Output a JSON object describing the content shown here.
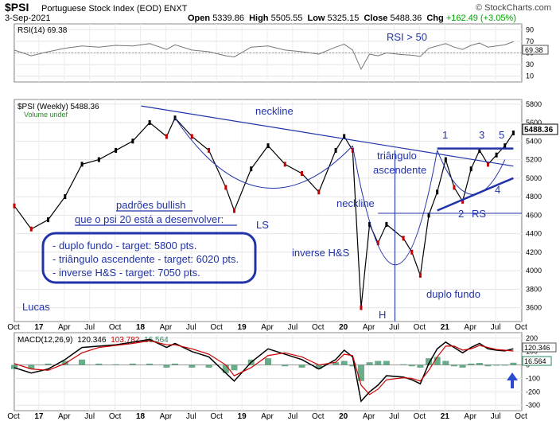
{
  "header": {
    "symbol": "$PSI",
    "name": "Portuguese Stock Index (EOD)  ENXT",
    "date": "3-Sep-2021",
    "site": "© StockCharts.com",
    "open_label": "Open",
    "open": "5339.86",
    "high_label": "High",
    "high": "5505.55",
    "low_label": "Low",
    "low": "5325.15",
    "close_label": "Close",
    "close": "5488.36",
    "chg_label": "Chg",
    "chg": "+162.49 (+3.05%)",
    "chg_color": "#00a000"
  },
  "rsi_panel": {
    "label": "RSI(14) 69.38",
    "value_tag": "69.38",
    "ticks": [
      10,
      30,
      50,
      70,
      90
    ],
    "annotation": "RSI > 50"
  },
  "price_panel": {
    "label": "$PSI (Weekly) 5488.36",
    "volume_label": "Volume undef",
    "last_tag": "5488.36",
    "y_ticks": [
      3600,
      3800,
      4000,
      4200,
      4400,
      4600,
      4800,
      5000,
      5200,
      5400,
      5600,
      5800
    ],
    "annotations": {
      "neckline_top": "neckline",
      "neckline_mid": "neckline",
      "triangle_1": "triângulo",
      "triangle_2": "ascendente",
      "ls": "LS",
      "h": "H",
      "rs": "RS",
      "inverse_hs": "inverse H&S",
      "double_bottom": "duplo fundo",
      "author": "Lucas",
      "p1": "1",
      "p2": "2",
      "p3": "3",
      "p4": "4",
      "p5": "5",
      "bullish_title": "padrões bullish",
      "bullish_sub": "que o psi 20  está a desenvolver:",
      "target_1": "- duplo fundo - target: 5800 pts.",
      "target_2": "- triângulo ascendente - target: 6020 pts.",
      "target_3": "- inverse H&S - target: 7050 pts."
    },
    "annotation_color": "#2233aa"
  },
  "macd_panel": {
    "label_name": "MACD(12,26,9)",
    "macd": "120.346",
    "signal": "103.782",
    "hist": "16.564",
    "signal_color": "#cc0000",
    "hist_color": "#2a8a5a",
    "tag_macd": "120.346",
    "tag_hist": "16.564",
    "ticks": [
      -300,
      -200,
      -100,
      0,
      100,
      200
    ]
  },
  "x_axis": {
    "labels": [
      {
        "t": "Oct",
        "b": false
      },
      {
        "t": "17",
        "b": true
      },
      {
        "t": "Apr",
        "b": false
      },
      {
        "t": "Jul",
        "b": false
      },
      {
        "t": "Oct",
        "b": false
      },
      {
        "t": "18",
        "b": true
      },
      {
        "t": "Apr",
        "b": false
      },
      {
        "t": "Jul",
        "b": false
      },
      {
        "t": "Oct",
        "b": false
      },
      {
        "t": "19",
        "b": true
      },
      {
        "t": "Apr",
        "b": false
      },
      {
        "t": "Jul",
        "b": false
      },
      {
        "t": "Oct",
        "b": false
      },
      {
        "t": "20",
        "b": true
      },
      {
        "t": "Apr",
        "b": false
      },
      {
        "t": "Jul",
        "b": false
      },
      {
        "t": "Oct",
        "b": false
      },
      {
        "t": "21",
        "b": true
      },
      {
        "t": "Apr",
        "b": false
      },
      {
        "t": "Jul",
        "b": false
      },
      {
        "t": "Oct",
        "b": false
      }
    ]
  },
  "chart_data": {
    "type": "line",
    "title": "$PSI Portuguese Stock Index (EOD) ENXT",
    "x_range": [
      "2016-10",
      "2021-10"
    ],
    "price": {
      "name": "$PSI (Weekly)",
      "ylim": [
        3450,
        5850
      ],
      "x": [
        "2016-10",
        "2016-12",
        "2017-02",
        "2017-04",
        "2017-06",
        "2017-08",
        "2017-10",
        "2017-12",
        "2018-02",
        "2018-04",
        "2018-05",
        "2018-07",
        "2018-09",
        "2018-11",
        "2018-12",
        "2019-02",
        "2019-04",
        "2019-06",
        "2019-08",
        "2019-10",
        "2019-12",
        "2020-01",
        "2020-02",
        "2020-03",
        "2020-04",
        "2020-05",
        "2020-06",
        "2020-08",
        "2020-09",
        "2020-10",
        "2020-11",
        "2020-12",
        "2021-01",
        "2021-02",
        "2021-03",
        "2021-04",
        "2021-05",
        "2021-06",
        "2021-07",
        "2021-08",
        "2021-09"
      ],
      "close": [
        4700,
        4450,
        4550,
        4800,
        5150,
        5200,
        5300,
        5400,
        5600,
        5450,
        5650,
        5450,
        5300,
        4900,
        4650,
        5100,
        5350,
        5150,
        5050,
        4850,
        5300,
        5450,
        5300,
        3600,
        4500,
        4300,
        4500,
        4350,
        4200,
        3950,
        4600,
        4850,
        5200,
        4900,
        4750,
        5100,
        5300,
        5150,
        5250,
        5350,
        5488
      ],
      "neckline": {
        "from": [
          "2018-01",
          5780
        ],
        "to": [
          "2021-09",
          5130
        ]
      },
      "horizontal_lines": [
        5320,
        4620
      ],
      "support_line": {
        "from": [
          "2020-12",
          4650
        ],
        "to": [
          "2021-09",
          5000
        ]
      }
    },
    "rsi": {
      "name": "RSI(14)",
      "ylim": [
        0,
        100
      ],
      "reference": 50,
      "values": [
        55,
        45,
        52,
        58,
        62,
        60,
        63,
        62,
        66,
        56,
        64,
        55,
        52,
        45,
        43,
        60,
        62,
        55,
        52,
        48,
        60,
        65,
        55,
        22,
        48,
        45,
        50,
        47,
        46,
        44,
        58,
        62,
        66,
        60,
        56,
        63,
        67,
        60,
        62,
        64,
        69.38
      ]
    },
    "macd": {
      "name": "MACD(12,26,9)",
      "ylim": [
        -340,
        240
      ],
      "macd": [
        -20,
        -60,
        -30,
        40,
        130,
        140,
        150,
        170,
        190,
        130,
        160,
        100,
        60,
        -60,
        -120,
        20,
        120,
        80,
        40,
        -30,
        40,
        110,
        60,
        -270,
        -200,
        -150,
        -80,
        -90,
        -110,
        -140,
        10,
        120,
        170,
        130,
        90,
        130,
        160,
        120,
        110,
        105,
        120.346
      ],
      "signal": [
        10,
        -30,
        -40,
        10,
        90,
        130,
        145,
        160,
        180,
        150,
        150,
        120,
        80,
        0,
        -80,
        -20,
        70,
        90,
        60,
        0,
        20,
        80,
        70,
        -150,
        -220,
        -180,
        -110,
        -95,
        -100,
        -120,
        -40,
        60,
        140,
        140,
        110,
        120,
        145,
        130,
        115,
        110,
        103.782
      ]
    }
  }
}
